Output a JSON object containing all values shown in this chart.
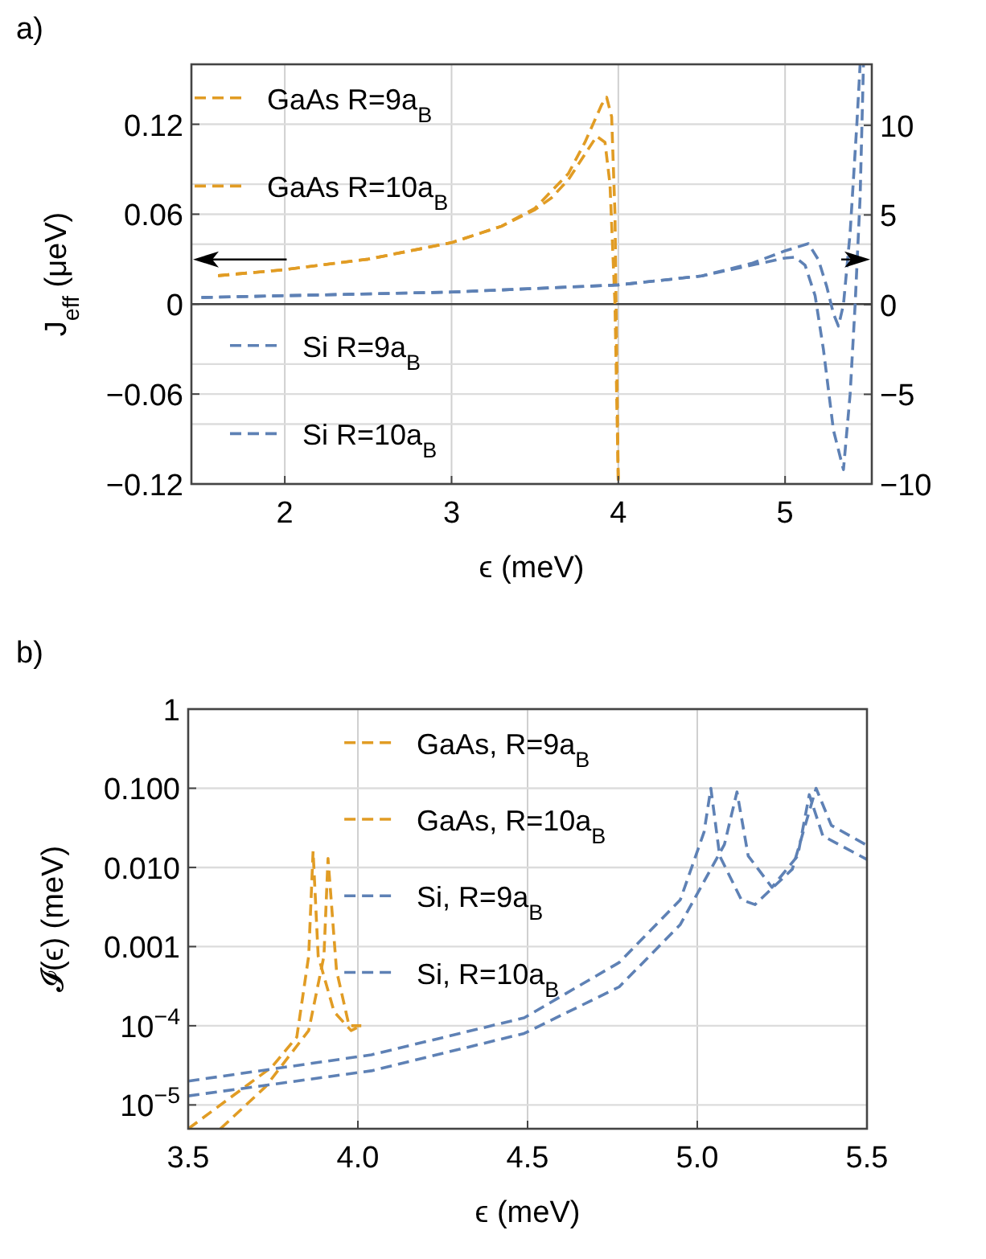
{
  "chart_data": [
    {
      "type": "line",
      "title": "a)",
      "xlabel": "ϵ (meV)",
      "ylabel": "J$_{eff}$ (μeV)",
      "xlim": [
        1.44,
        5.52
      ],
      "xticks": [
        2,
        3,
        4,
        5
      ],
      "ylim": [
        -0.12,
        0.16
      ],
      "yticks": [
        {
          "value": -0.12,
          "label": "−0.12"
        },
        {
          "value": -0.08,
          "label": null
        },
        {
          "value": -0.06,
          "label": "−0.06"
        },
        {
          "value": -0.04,
          "label": null
        },
        0,
        {
          "value": 0.04,
          "label": null
        },
        0.06,
        {
          "value": 0.08,
          "label": null
        },
        0.12
      ],
      "y2lim": [
        -10,
        13.4
      ],
      "y2ticks": [
        {
          "value": -10,
          "label": "−10"
        },
        {
          "value": -5,
          "label": "−5"
        },
        0,
        5,
        10
      ],
      "grid": true,
      "legend": "left",
      "line_style": "dashed",
      "ref_lines": [
        {
          "axis": "y",
          "value": 0,
          "color": "#404040"
        }
      ],
      "series": [
        {
          "name": "GaAs R=9a$_{B}$",
          "color": "#e19c24",
          "x": [
            1.6,
            2.0,
            2.5,
            3.0,
            3.3,
            3.5,
            3.6,
            3.7,
            3.8,
            3.87,
            3.92,
            3.95,
            3.98,
            4.0
          ],
          "values": [
            0.019,
            0.023,
            0.03,
            0.041,
            0.052,
            0.063,
            0.071,
            0.083,
            0.1,
            0.112,
            0.108,
            0.08,
            0.0,
            -0.12
          ]
        },
        {
          "name": "GaAs R=10a$_{B}$",
          "color": "#e19c24",
          "x": [
            1.6,
            2.0,
            2.5,
            3.0,
            3.3,
            3.5,
            3.7,
            3.8,
            3.9,
            3.93,
            3.96,
            3.98,
            4.0
          ],
          "values": [
            0.019,
            0.023,
            0.03,
            0.041,
            0.052,
            0.064,
            0.087,
            0.108,
            0.133,
            0.138,
            0.125,
            0.06,
            -0.12
          ]
        },
        {
          "name": "Si R=9a$_{B}$",
          "color": "#5e81b5",
          "axis": "y2",
          "x": [
            1.5,
            2.0,
            3.0,
            4.0,
            4.5,
            4.8,
            5.0,
            5.06,
            5.12,
            5.18,
            5.23,
            5.29,
            5.35,
            5.39,
            5.42,
            5.45,
            5.47
          ],
          "values": [
            0.4,
            0.5,
            0.7,
            1.1,
            1.6,
            2.2,
            2.6,
            2.65,
            2.2,
            0.5,
            -2.5,
            -7,
            -9.2,
            -5,
            0,
            6,
            13.4
          ]
        },
        {
          "name": "Si R=10a$_{B}$",
          "color": "#5e81b5",
          "axis": "y2",
          "x": [
            1.5,
            2.0,
            3.0,
            4.0,
            4.5,
            4.8,
            5.0,
            5.14,
            5.2,
            5.25,
            5.29,
            5.32,
            5.35,
            5.39,
            5.43,
            5.45
          ],
          "values": [
            0.4,
            0.5,
            0.7,
            1.1,
            1.6,
            2.3,
            3.0,
            3.4,
            2.5,
            1.0,
            -0.5,
            -1.2,
            0,
            4,
            10,
            13.4
          ]
        }
      ]
    },
    {
      "type": "line",
      "title": "b)",
      "xlabel": "ϵ (meV)",
      "ylabel": "𝓘(ϵ) (meV)",
      "log": "y",
      "xlim": [
        3.5,
        5.5
      ],
      "xticks": [
        3.5,
        {
          "value": 4,
          "label": "4.0"
        },
        4.5,
        {
          "value": 5,
          "label": "5.0"
        },
        5.5
      ],
      "ylim": [
        5e-06,
        1
      ],
      "yticks": [
        {
          "value": 1e-05,
          "label": "10$^{−5}$"
        },
        {
          "value": 0.0001,
          "label": "10$^{−4}$"
        },
        0.001,
        {
          "value": 0.01,
          "label": "0.010"
        },
        {
          "value": 0.1,
          "label": "0.100"
        },
        1
      ],
      "grid": true,
      "legend": "top",
      "line_style": "dashed",
      "series": [
        {
          "name": "GaAs, R=9a$_{B}$",
          "color": "#e19c24",
          "x": [
            3.5,
            3.746,
            3.82,
            3.855,
            3.868,
            3.883,
            3.93,
            3.98,
            4.01
          ],
          "values": [
            5e-06,
            3e-05,
            7.2e-05,
            0.00076,
            0.016,
            0.00076,
            0.00015,
            8.7e-05,
            0.0001
          ]
        },
        {
          "name": "GaAs, R=10a$_{B}$",
          "color": "#e19c24",
          "x": [
            3.595,
            3.728,
            3.855,
            3.9,
            3.912,
            3.937,
            3.974,
            4.01
          ],
          "values": [
            5e-06,
            1.7e-05,
            8.7e-05,
            0.00076,
            0.013,
            0.0005,
            0.0001,
            0.0001
          ]
        },
        {
          "name": "Si, R=9a$_{B}$",
          "color": "#5e81b5",
          "x": [
            3.5,
            4.04,
            4.49,
            4.77,
            4.95,
            5.02,
            5.04,
            5.066,
            5.13,
            5.17,
            5.28,
            5.35,
            5.395,
            5.5
          ],
          "values": [
            2e-05,
            4.3e-05,
            0.000126,
            0.00063,
            0.0039,
            0.028,
            0.1,
            0.014,
            0.0039,
            0.0034,
            0.0095,
            0.1,
            0.034,
            0.019
          ]
        },
        {
          "name": "Si, R=10a$_{B}$",
          "color": "#5e81b5",
          "x": [
            3.5,
            4.04,
            4.49,
            4.77,
            4.95,
            5.08,
            5.117,
            5.15,
            5.22,
            5.296,
            5.33,
            5.37,
            5.5
          ],
          "values": [
            1.3e-05,
            2.7e-05,
            8e-05,
            0.00031,
            0.0019,
            0.0195,
            0.09,
            0.014,
            0.0056,
            0.014,
            0.083,
            0.025,
            0.0126
          ]
        }
      ]
    }
  ]
}
